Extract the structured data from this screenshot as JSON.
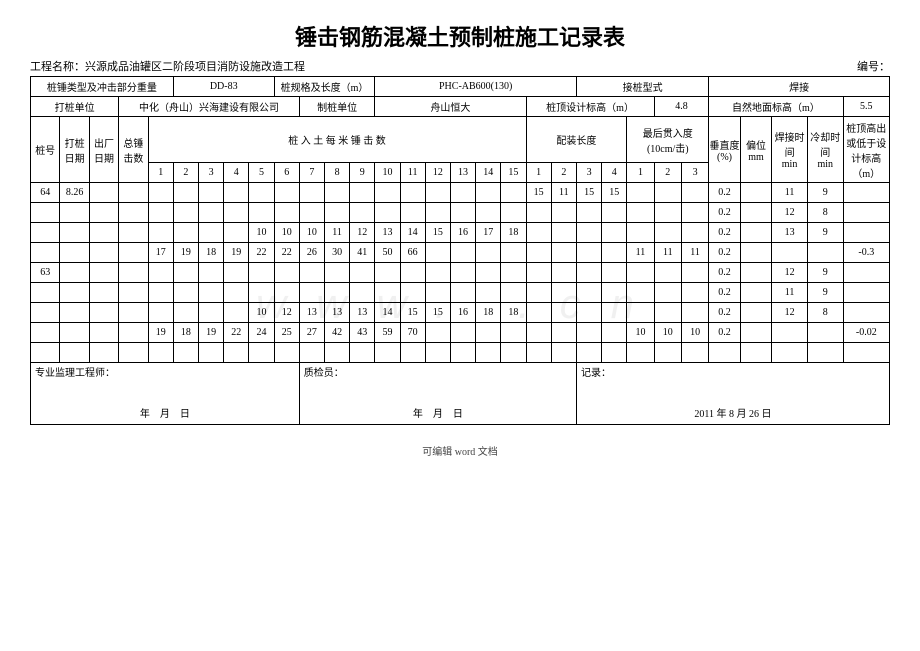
{
  "title": "锤击钢筋混凝土预制桩施工记录表",
  "project_label": "工程名称：",
  "project_name": "兴源成品油罐区二阶段项目消防设施改造工程",
  "serial_label": "编号：",
  "r1": {
    "c1": "桩锤类型及冲击部分重量",
    "c2": "DD-83",
    "c3": "桩规格及长度（m）",
    "c4": "PHC-AB600(130)",
    "c5": "接桩型式",
    "c6": "焊接"
  },
  "r2": {
    "c1": "打桩单位",
    "c2": "中化（舟山）兴海建设有限公司",
    "c3": "制桩单位",
    "c4": "舟山恒大",
    "c5": "桩顶设计标高（m）",
    "c6": "4.8",
    "c7": "自然地面标高（m）",
    "c8": "5.5"
  },
  "hdr": {
    "pile_no": "桩号",
    "pile_date": "打桩日期",
    "factory_date": "出厂日期",
    "total_strikes": "总锤击数",
    "per_meter": "桩 入 土 每 米 锤 击 数",
    "assembly": "配装长度",
    "penetration": "最后贯入度",
    "penetration_sub": "(10cm/击)",
    "vertical": "垂直度",
    "vertical_sub": "(%)",
    "offset": "偏位",
    "offset_unit": "mm",
    "weld_time": "焊接时间",
    "cool_time": "冷却时间",
    "time_unit": "min",
    "top_elev": "桩顶高出或低于设计标高",
    "top_elev_unit": "（m）"
  },
  "nums": [
    "1",
    "2",
    "3",
    "4",
    "5",
    "6",
    "7",
    "8",
    "9",
    "10",
    "11",
    "12",
    "13",
    "14",
    "15",
    "1",
    "2",
    "3",
    "4",
    "1",
    "2",
    "3"
  ],
  "rows": [
    {
      "no": "64",
      "date": "8.26",
      "m": [
        "",
        "",
        "",
        "",
        "",
        "",
        "",
        "",
        "",
        "",
        "",
        "",
        "",
        "",
        ""
      ],
      "a": [
        "15",
        "11",
        "15",
        "15"
      ],
      "p": [
        "",
        "",
        ""
      ],
      "v": "0.2",
      "o": "",
      "w": "11",
      "c": "9",
      "e": ""
    },
    {
      "no": "",
      "date": "",
      "m": [
        "",
        "",
        "",
        "",
        "",
        "",
        "",
        "",
        "",
        "",
        "",
        "",
        "",
        "",
        ""
      ],
      "a": [
        "",
        "",
        "",
        ""
      ],
      "p": [
        "",
        "",
        ""
      ],
      "v": "0.2",
      "o": "",
      "w": "12",
      "c": "8",
      "e": ""
    },
    {
      "no": "",
      "date": "",
      "m": [
        "",
        "",
        "",
        "",
        "10",
        "10",
        "10",
        "11",
        "12",
        "13",
        "14",
        "15",
        "16",
        "17",
        "18"
      ],
      "a": [
        "",
        "",
        "",
        ""
      ],
      "p": [
        "",
        "",
        ""
      ],
      "v": "0.2",
      "o": "",
      "w": "13",
      "c": "9",
      "e": ""
    },
    {
      "no": "",
      "date": "",
      "m": [
        "17",
        "19",
        "18",
        "19",
        "22",
        "22",
        "26",
        "30",
        "41",
        "50",
        "66",
        "",
        "",
        "",
        ""
      ],
      "a": [
        "",
        "",
        "",
        ""
      ],
      "p": [
        "11",
        "11",
        "11"
      ],
      "v": "0.2",
      "o": "",
      "w": "",
      "c": "",
      "e": "-0.3"
    },
    {
      "no": "63",
      "date": "",
      "m": [
        "",
        "",
        "",
        "",
        "",
        "",
        "",
        "",
        "",
        "",
        "",
        "",
        "",
        "",
        ""
      ],
      "a": [
        "",
        "",
        "",
        ""
      ],
      "p": [
        "",
        "",
        ""
      ],
      "v": "0.2",
      "o": "",
      "w": "12",
      "c": "9",
      "e": ""
    },
    {
      "no": "",
      "date": "",
      "m": [
        "",
        "",
        "",
        "",
        "",
        "",
        "",
        "",
        "",
        "",
        "",
        "",
        "",
        "",
        ""
      ],
      "a": [
        "",
        "",
        "",
        ""
      ],
      "p": [
        "",
        "",
        ""
      ],
      "v": "0.2",
      "o": "",
      "w": "11",
      "c": "9",
      "e": ""
    },
    {
      "no": "",
      "date": "",
      "m": [
        "",
        "",
        "",
        "",
        "10",
        "12",
        "13",
        "13",
        "13",
        "14",
        "15",
        "15",
        "16",
        "18",
        "18"
      ],
      "a": [
        "",
        "",
        "",
        ""
      ],
      "p": [
        "",
        "",
        ""
      ],
      "v": "0.2",
      "o": "",
      "w": "12",
      "c": "8",
      "e": ""
    },
    {
      "no": "",
      "date": "",
      "m": [
        "19",
        "18",
        "19",
        "22",
        "24",
        "25",
        "27",
        "42",
        "43",
        "59",
        "70",
        "",
        "",
        "",
        ""
      ],
      "a": [
        "",
        "",
        "",
        ""
      ],
      "p": [
        "10",
        "10",
        "10"
      ],
      "v": "0.2",
      "o": "",
      "w": "",
      "c": "",
      "e": "-0.02"
    },
    {
      "no": "",
      "date": "",
      "m": [
        "",
        "",
        "",
        "",
        "",
        "",
        "",
        "",
        "",
        "",
        "",
        "",
        "",
        "",
        ""
      ],
      "a": [
        "",
        "",
        "",
        ""
      ],
      "p": [
        "",
        "",
        ""
      ],
      "v": "",
      "o": "",
      "w": "",
      "c": "",
      "e": ""
    }
  ],
  "sig": {
    "engineer": "专业监理工程师：",
    "inspector": "质检员：",
    "recorder": "记录：",
    "date_blank": "年　月　日",
    "date_filled": "2011 年 8 月 26 日"
  },
  "footer": "可编辑 word 文档",
  "watermark": "www.      .cn"
}
